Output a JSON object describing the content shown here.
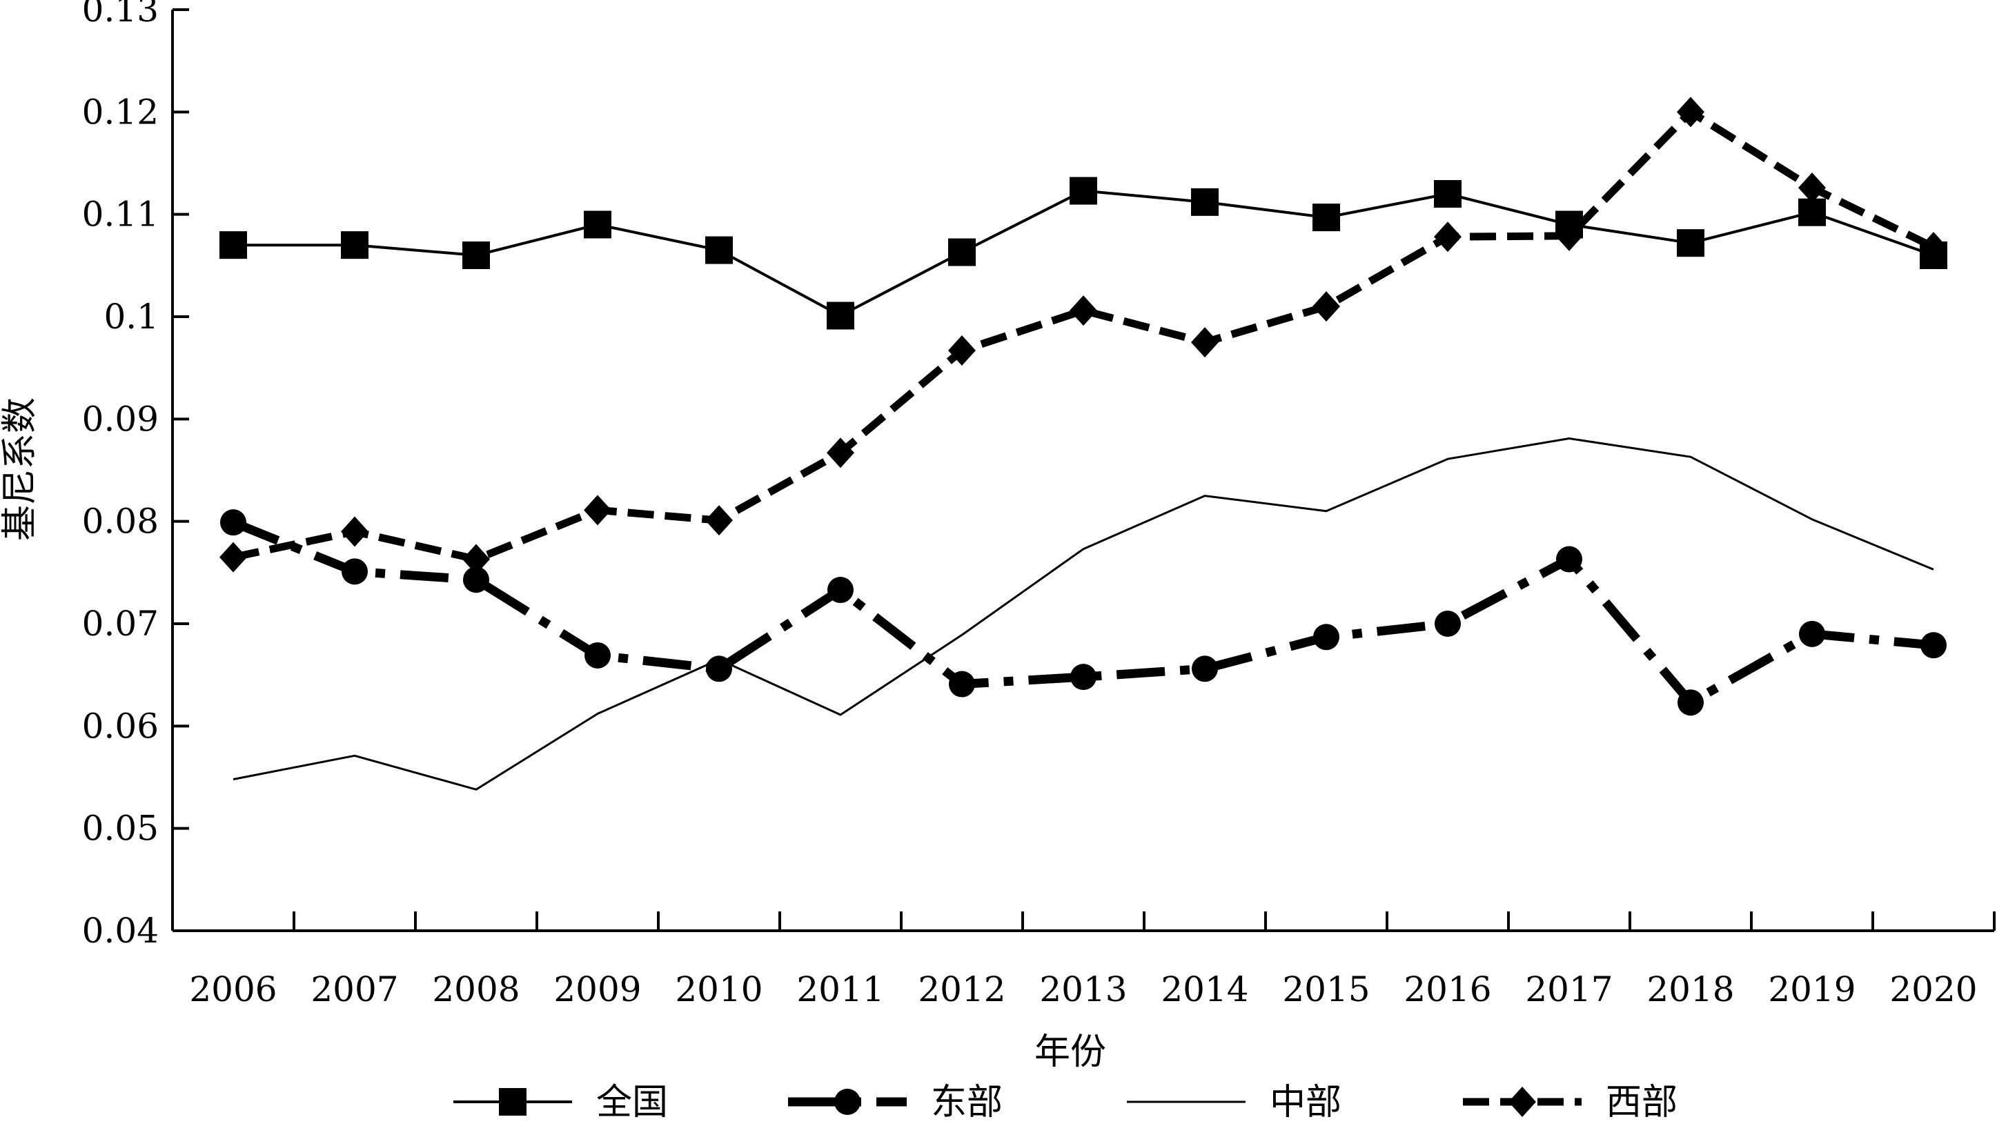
{
  "chart_data": {
    "type": "line",
    "title": "",
    "xlabel": "年份",
    "ylabel": "基尼系数",
    "categories": [
      "2006",
      "2007",
      "2008",
      "2009",
      "2010",
      "2011",
      "2012",
      "2013",
      "2014",
      "2015",
      "2016",
      "2017",
      "2018",
      "2019",
      "2020"
    ],
    "ylim": [
      0.04,
      0.13
    ],
    "yticks": [
      0.04,
      0.05,
      0.06,
      0.07,
      0.08,
      0.09,
      0.1,
      0.11,
      0.12,
      0.13
    ],
    "ytick_labels": [
      "0.04",
      "0.05",
      "0.06",
      "0.07",
      "0.08",
      "0.09",
      "0.1",
      "0.11",
      "0.12",
      "0.13"
    ],
    "grid": false,
    "legend_position": "bottom",
    "series": [
      {
        "name": "全国",
        "style": "solid-square",
        "color": "#000000",
        "values": [
          0.107,
          0.107,
          0.106,
          0.109,
          0.1065,
          0.1001,
          0.1063,
          0.1123,
          0.1112,
          0.1097,
          0.112,
          0.109,
          0.1072,
          0.1102,
          0.106
        ]
      },
      {
        "name": "东部",
        "style": "dashdot-circle",
        "color": "#000000",
        "values": [
          0.0799,
          0.0751,
          0.0743,
          0.0669,
          0.0656,
          0.0733,
          0.0641,
          0.0648,
          0.0656,
          0.0687,
          0.07,
          0.0763,
          0.0623,
          0.069,
          0.0679
        ]
      },
      {
        "name": "中部",
        "style": "thin-solid",
        "color": "#000000",
        "values": [
          0.0548,
          0.0571,
          0.0538,
          0.0612,
          0.0665,
          0.0611,
          0.0689,
          0.0773,
          0.0825,
          0.081,
          0.0861,
          0.0881,
          0.0863,
          0.0802,
          0.0753
        ]
      },
      {
        "name": "西部",
        "style": "dashed-diamond",
        "color": "#000000",
        "values": [
          0.0765,
          0.079,
          0.0763,
          0.0811,
          0.0801,
          0.0867,
          0.0967,
          0.1006,
          0.0975,
          0.101,
          0.1078,
          0.1079,
          0.12,
          0.1126,
          0.1068
        ]
      }
    ]
  }
}
